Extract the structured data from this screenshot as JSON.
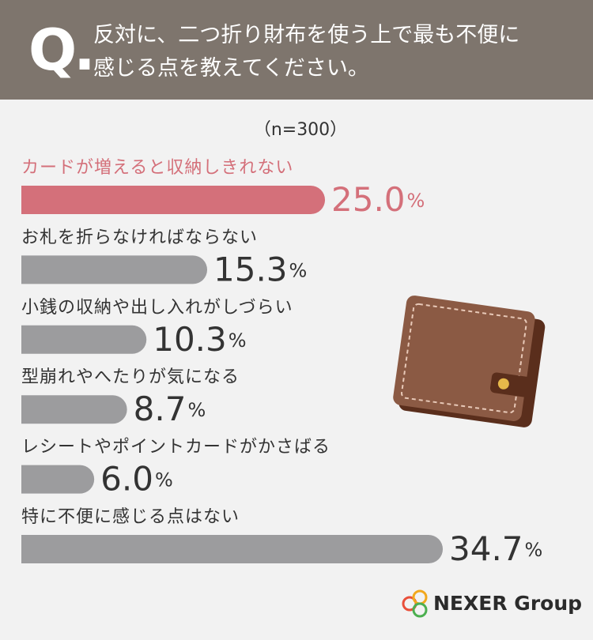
{
  "question_label": "Q.",
  "chart_data": {
    "type": "hbar",
    "title": "反対に、二つ折り財布を使う上で最も不便に感じる点を教えてください。",
    "subtitle": "（n=300）",
    "categories": [
      "カードが増えると収納しきれない",
      "お札を折らなければならない",
      "小銭の収納や出し入れがしづらい",
      "型崩れやへたりが気になる",
      "レシートやポイントカードがかさばる",
      "特に不便に感じる点はない"
    ],
    "values": [
      25.0,
      15.3,
      10.3,
      8.7,
      6.0,
      34.7
    ],
    "value_labels": [
      "25.0",
      "15.3",
      "10.3",
      "8.7",
      "6.0",
      "34.7"
    ],
    "unit": "%",
    "colors": [
      "#d4707a",
      "#9c9c9e",
      "#9c9c9e",
      "#9c9c9e",
      "#9c9c9e",
      "#9c9c9e"
    ],
    "xlim": [
      0,
      36
    ]
  },
  "footer": {
    "logo": "NEXER Group"
  }
}
